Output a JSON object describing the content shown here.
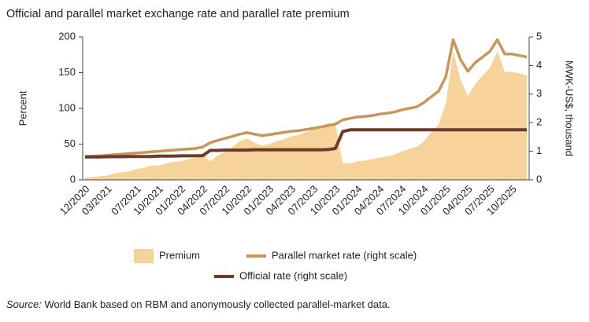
{
  "chart_data": {
    "type": "area-line",
    "title": "Official and parallel market exchange rate and parallel rate premium",
    "y_label": "Percent",
    "y2_label": "MWK-US$, thousand",
    "categories": [
      "12/2020",
      null,
      null,
      "03/2021",
      null,
      null,
      null,
      "07/2021",
      null,
      null,
      "10/2021",
      null,
      null,
      "01/2022",
      null,
      null,
      "04/2022",
      null,
      null,
      "07/2022",
      null,
      null,
      "10/2022",
      null,
      null,
      "01/2023",
      null,
      null,
      "04/2023",
      null,
      null,
      "07/2023",
      null,
      null,
      "10/2023",
      null,
      null,
      "01/2024",
      null,
      null,
      "04/2024",
      null,
      null,
      "07/2024",
      null,
      null,
      "10/2024",
      null,
      null,
      "01/2025",
      null,
      null,
      "04/2025",
      null,
      null,
      "07/2025",
      null,
      null,
      "10/2025",
      null,
      null
    ],
    "series": [
      {
        "name": "Premium",
        "type": "area",
        "axis": "y",
        "color": "#f6d39b",
        "values": [
          3,
          4,
          5,
          6,
          9,
          11,
          12,
          15,
          17,
          20,
          20,
          23,
          25,
          26,
          29,
          31,
          35,
          26,
          34,
          39,
          46,
          54,
          58,
          52,
          48,
          50,
          54,
          57,
          61,
          63,
          67,
          70,
          75,
          79,
          77,
          24,
          23,
          26,
          27,
          29,
          31,
          33,
          35,
          40,
          43,
          46,
          54,
          66,
          77,
          106,
          180,
          140,
          117,
          134,
          146,
          157,
          180,
          151,
          151,
          149,
          146
        ]
      },
      {
        "name": "Parallel market rate (right scale)",
        "type": "line",
        "axis": "y2",
        "color": "#c8965a",
        "values": [
          0.82,
          0.83,
          0.84,
          0.86,
          0.88,
          0.9,
          0.92,
          0.94,
          0.96,
          0.98,
          1.0,
          1.02,
          1.04,
          1.06,
          1.08,
          1.1,
          1.15,
          1.3,
          1.38,
          1.45,
          1.52,
          1.6,
          1.65,
          1.6,
          1.55,
          1.58,
          1.62,
          1.66,
          1.7,
          1.72,
          1.76,
          1.8,
          1.85,
          1.9,
          1.95,
          2.1,
          2.15,
          2.2,
          2.22,
          2.25,
          2.3,
          2.33,
          2.37,
          2.45,
          2.5,
          2.55,
          2.7,
          2.9,
          3.1,
          3.6,
          4.9,
          4.2,
          3.8,
          4.1,
          4.3,
          4.5,
          4.9,
          4.4,
          4.4,
          4.35,
          4.3
        ]
      },
      {
        "name": "Official rate (right scale)",
        "type": "line",
        "axis": "y2",
        "color": "#6b3a2a",
        "values": [
          0.8,
          0.8,
          0.8,
          0.81,
          0.81,
          0.81,
          0.82,
          0.82,
          0.82,
          0.82,
          0.83,
          0.83,
          0.83,
          0.84,
          0.84,
          0.84,
          0.85,
          1.03,
          1.03,
          1.04,
          1.04,
          1.04,
          1.04,
          1.05,
          1.05,
          1.05,
          1.05,
          1.05,
          1.05,
          1.05,
          1.05,
          1.05,
          1.05,
          1.06,
          1.1,
          1.69,
          1.75,
          1.75,
          1.75,
          1.75,
          1.75,
          1.75,
          1.75,
          1.75,
          1.75,
          1.75,
          1.75,
          1.75,
          1.75,
          1.75,
          1.75,
          1.75,
          1.75,
          1.75,
          1.75,
          1.75,
          1.75,
          1.75,
          1.75,
          1.75,
          1.75
        ]
      }
    ],
    "ylim": [
      0,
      200
    ],
    "yticks": [
      0,
      50,
      100,
      150,
      200
    ],
    "y2lim": [
      0,
      5
    ],
    "y2ticks": [
      0,
      1,
      2,
      3,
      4,
      5
    ],
    "grid": false,
    "legend": "bottom",
    "source_label": "Source:",
    "source_text": "World Bank based on RBM and anonymously collected parallel-market data."
  }
}
